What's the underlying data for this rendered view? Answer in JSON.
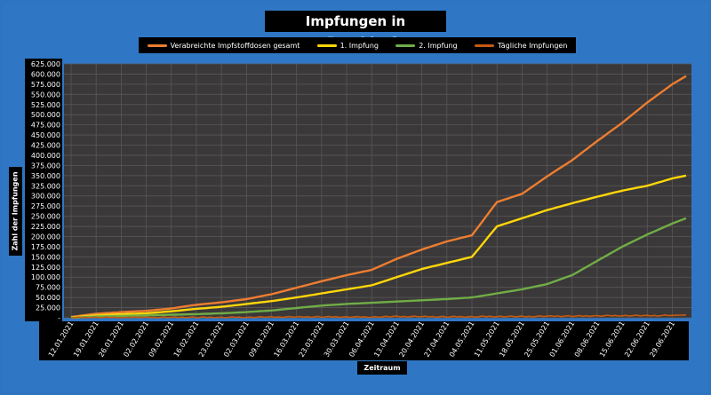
{
  "chart_data": {
    "type": "line",
    "title": "Impfungen in Düsseldorf",
    "xlabel": "Zeitraum",
    "ylabel": "Zahl der Impfungen",
    "ylim": [
      0,
      625000
    ],
    "yticks": [
      "-",
      "25.000",
      "50.000",
      "75.000",
      "100.000",
      "125.000",
      "150.000",
      "175.000",
      "200.000",
      "225.000",
      "250.000",
      "275.000",
      "300.000",
      "325.000",
      "350.000",
      "375.000",
      "400.000",
      "425.000",
      "450.000",
      "475.000",
      "500.000",
      "525.000",
      "550.000",
      "575.000",
      "600.000",
      "625.000"
    ],
    "x": [
      "12.01.2021",
      "19.01.2021",
      "26.01.2021",
      "02.02.2021",
      "09.02.2021",
      "16.02.2021",
      "23.02.2021",
      "02.03.2021",
      "09.03.2021",
      "16.03.2021",
      "23.03.2021",
      "30.03.2021",
      "06.04.2021",
      "13.04.2021",
      "20.04.2021",
      "27.04.2021",
      "04.05.2021",
      "11.05.2021",
      "18.05.2021",
      "25.05.2021",
      "01.06.2021",
      "08.06.2021",
      "15.06.2021",
      "22.06.2021",
      "29.06.2021"
    ],
    "grid": true,
    "legend_position": "top",
    "series": [
      {
        "name": "Verabreichte Impfstoffdosen gesamt",
        "color": "#ed7d31",
        "values": [
          2000,
          10000,
          14000,
          17000,
          23000,
          32000,
          38000,
          46000,
          58000,
          74000,
          90000,
          105000,
          118000,
          145000,
          168000,
          188000,
          203000,
          285000,
          305000,
          348000,
          388000,
          435000,
          480000,
          530000,
          575000
        ],
        "end_value": 595000
      },
      {
        "name": "1. Impfung",
        "color": "#ffd60a",
        "values": [
          1000,
          6000,
          9000,
          11000,
          16000,
          22000,
          27000,
          34000,
          41000,
          50000,
          60000,
          70000,
          80000,
          100000,
          120000,
          135000,
          150000,
          225000,
          245000,
          265000,
          282000,
          298000,
          313000,
          325000,
          343000
        ],
        "end_value": 350000
      },
      {
        "name": "2. Impfung",
        "color": "#70ad47",
        "values": [
          0,
          3000,
          4500,
          6000,
          7500,
          9000,
          11000,
          14000,
          18000,
          24000,
          30000,
          34000,
          37000,
          40000,
          43000,
          46000,
          50000,
          60000,
          70000,
          83000,
          105000,
          140000,
          175000,
          205000,
          232000
        ],
        "end_value": 245000
      },
      {
        "name": "Tägliche Impfungen",
        "color": "#c55a11",
        "values": [
          400,
          900,
          800,
          700,
          1000,
          1200,
          1000,
          1500,
          1700,
          2100,
          2300,
          2100,
          2000,
          3000,
          2900,
          2400,
          2700,
          3500,
          2900,
          3900,
          4100,
          4800,
          5400,
          5000,
          6000
        ],
        "end_value": 7000
      }
    ]
  }
}
